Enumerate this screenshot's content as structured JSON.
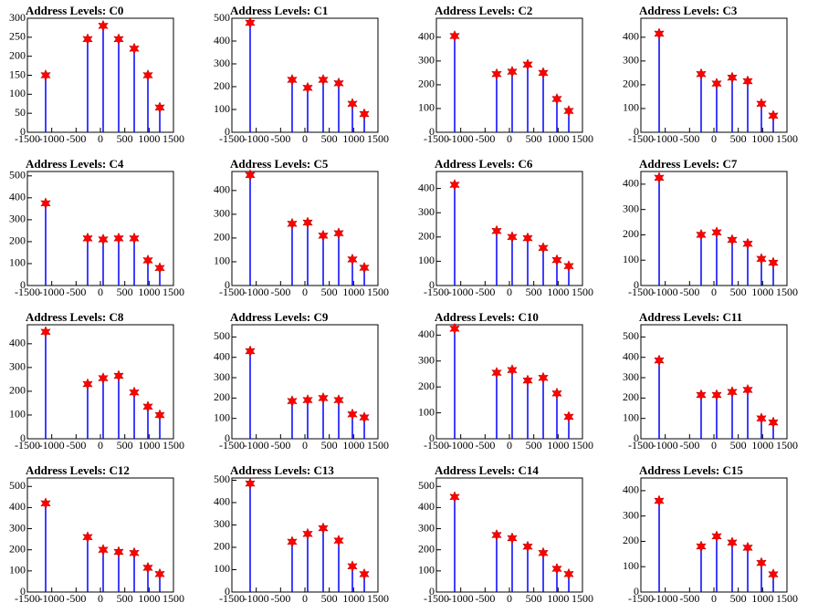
{
  "chart_data": [
    {
      "type": "scatter",
      "title": "Address Levels: C0",
      "x": [
        -1125,
        -263,
        56,
        375,
        694,
        975,
        1219
      ],
      "values": [
        150,
        245,
        280,
        245,
        220,
        150,
        65
      ],
      "ylim": [
        0,
        300
      ],
      "yticks": [
        0,
        50,
        100,
        150,
        200,
        250,
        300
      ],
      "xlim": [
        -1500,
        1500
      ],
      "xticks": [
        -1500,
        -1000,
        -500,
        0,
        500,
        1000,
        1500
      ],
      "color": "#ff0000",
      "line_color": "#0000ff"
    },
    {
      "type": "scatter",
      "title": "Address Levels: C1",
      "x": [
        -1125,
        -263,
        56,
        375,
        694,
        975,
        1219
      ],
      "values": [
        480,
        230,
        195,
        230,
        215,
        125,
        80
      ],
      "ylim": [
        0,
        500
      ],
      "yticks": [
        0,
        100,
        200,
        300,
        400,
        500
      ],
      "xlim": [
        -1500,
        1500
      ],
      "xticks": [
        -1500,
        -1000,
        -500,
        0,
        500,
        1000,
        1500
      ],
      "color": "#ff0000",
      "line_color": "#0000ff"
    },
    {
      "type": "scatter",
      "title": "Address Levels: C2",
      "x": [
        -1125,
        -263,
        56,
        375,
        694,
        975,
        1219
      ],
      "values": [
        405,
        245,
        255,
        285,
        250,
        140,
        90
      ],
      "ylim": [
        0,
        480
      ],
      "yticks": [
        0,
        100,
        200,
        300,
        400
      ],
      "xlim": [
        -1500,
        1500
      ],
      "xticks": [
        -1500,
        -1000,
        -500,
        0,
        500,
        1000,
        1500
      ],
      "color": "#ff0000",
      "line_color": "#0000ff"
    },
    {
      "type": "scatter",
      "title": "Address Levels: C3",
      "x": [
        -1125,
        -263,
        56,
        375,
        694,
        975,
        1219
      ],
      "values": [
        415,
        245,
        205,
        230,
        215,
        120,
        70
      ],
      "ylim": [
        0,
        480
      ],
      "yticks": [
        0,
        100,
        200,
        300,
        400
      ],
      "xlim": [
        -1500,
        1500
      ],
      "xticks": [
        -1500,
        -1000,
        -500,
        0,
        500,
        1000,
        1500
      ],
      "color": "#ff0000",
      "line_color": "#0000ff"
    },
    {
      "type": "scatter",
      "title": "Address Levels: C4",
      "x": [
        -1125,
        -263,
        56,
        375,
        694,
        975,
        1219
      ],
      "values": [
        375,
        215,
        210,
        215,
        215,
        115,
        80
      ],
      "ylim": [
        0,
        520
      ],
      "yticks": [
        0,
        100,
        200,
        300,
        400,
        500
      ],
      "xlim": [
        -1500,
        1500
      ],
      "xticks": [
        -1500,
        -1000,
        -500,
        0,
        500,
        1000,
        1500
      ],
      "color": "#ff0000",
      "line_color": "#0000ff"
    },
    {
      "type": "scatter",
      "title": "Address Levels: C5",
      "x": [
        -1125,
        -263,
        56,
        375,
        694,
        975,
        1219
      ],
      "values": [
        465,
        260,
        265,
        210,
        220,
        110,
        75
      ],
      "ylim": [
        0,
        480
      ],
      "yticks": [
        0,
        100,
        200,
        300,
        400
      ],
      "xlim": [
        -1500,
        1500
      ],
      "xticks": [
        -1500,
        -1000,
        -500,
        0,
        500,
        1000,
        1500
      ],
      "color": "#ff0000",
      "line_color": "#0000ff"
    },
    {
      "type": "scatter",
      "title": "Address Levels: C6",
      "x": [
        -1125,
        -263,
        56,
        375,
        694,
        975,
        1219
      ],
      "values": [
        415,
        225,
        200,
        195,
        155,
        105,
        80
      ],
      "ylim": [
        0,
        470
      ],
      "yticks": [
        0,
        100,
        200,
        300,
        400
      ],
      "xlim": [
        -1500,
        1500
      ],
      "xticks": [
        -1500,
        -1000,
        -500,
        0,
        500,
        1000,
        1500
      ],
      "color": "#ff0000",
      "line_color": "#0000ff"
    },
    {
      "type": "scatter",
      "title": "Address Levels: C7",
      "x": [
        -1125,
        -263,
        56,
        375,
        694,
        975,
        1219
      ],
      "values": [
        425,
        200,
        210,
        180,
        165,
        105,
        90
      ],
      "ylim": [
        0,
        450
      ],
      "yticks": [
        0,
        100,
        200,
        300,
        400
      ],
      "xlim": [
        -1500,
        1500
      ],
      "xticks": [
        -1500,
        -1000,
        -500,
        0,
        500,
        1000,
        1500
      ],
      "color": "#ff0000",
      "line_color": "#0000ff"
    },
    {
      "type": "scatter",
      "title": "Address Levels: C8",
      "x": [
        -1125,
        -263,
        56,
        375,
        694,
        975,
        1219
      ],
      "values": [
        450,
        230,
        255,
        265,
        195,
        135,
        100
      ],
      "ylim": [
        0,
        480
      ],
      "yticks": [
        0,
        100,
        200,
        300,
        400
      ],
      "xlim": [
        -1500,
        1500
      ],
      "xticks": [
        -1500,
        -1000,
        -500,
        0,
        500,
        1000,
        1500
      ],
      "color": "#ff0000",
      "line_color": "#0000ff"
    },
    {
      "type": "scatter",
      "title": "Address Levels: C9",
      "x": [
        -1125,
        -263,
        56,
        375,
        694,
        975,
        1219
      ],
      "values": [
        430,
        185,
        190,
        200,
        190,
        120,
        105
      ],
      "ylim": [
        0,
        560
      ],
      "yticks": [
        0,
        100,
        200,
        300,
        400,
        500
      ],
      "xlim": [
        -1500,
        1500
      ],
      "xticks": [
        -1500,
        -1000,
        -500,
        0,
        500,
        1000,
        1500
      ],
      "color": "#ff0000",
      "line_color": "#0000ff"
    },
    {
      "type": "scatter",
      "title": "Address Levels: C10",
      "x": [
        -1125,
        -263,
        56,
        375,
        694,
        975,
        1219
      ],
      "values": [
        425,
        255,
        265,
        225,
        235,
        175,
        85
      ],
      "ylim": [
        0,
        440
      ],
      "yticks": [
        0,
        100,
        200,
        300,
        400
      ],
      "xlim": [
        -1500,
        1500
      ],
      "xticks": [
        -1500,
        -1000,
        -500,
        0,
        500,
        1000,
        1500
      ],
      "color": "#ff0000",
      "line_color": "#0000ff"
    },
    {
      "type": "scatter",
      "title": "Address Levels: C11",
      "x": [
        -1125,
        -263,
        56,
        375,
        694,
        975,
        1219
      ],
      "values": [
        385,
        215,
        215,
        230,
        240,
        100,
        80
      ],
      "ylim": [
        0,
        560
      ],
      "yticks": [
        0,
        100,
        200,
        300,
        400,
        500
      ],
      "xlim": [
        -1500,
        1500
      ],
      "xticks": [
        -1500,
        -1000,
        -500,
        0,
        500,
        1000,
        1500
      ],
      "color": "#ff0000",
      "line_color": "#0000ff"
    },
    {
      "type": "scatter",
      "title": "Address Levels: C12",
      "x": [
        -1125,
        -263,
        56,
        375,
        694,
        975,
        1219
      ],
      "values": [
        420,
        260,
        200,
        190,
        185,
        115,
        85
      ],
      "ylim": [
        0,
        540
      ],
      "yticks": [
        0,
        100,
        200,
        300,
        400,
        500
      ],
      "xlim": [
        -1500,
        1500
      ],
      "xticks": [
        -1500,
        -1000,
        -500,
        0,
        500,
        1000,
        1500
      ],
      "color": "#ff0000",
      "line_color": "#0000ff"
    },
    {
      "type": "scatter",
      "title": "Address Levels: C13",
      "x": [
        -1125,
        -263,
        56,
        375,
        694,
        975,
        1219
      ],
      "values": [
        485,
        225,
        260,
        285,
        230,
        115,
        80
      ],
      "ylim": [
        0,
        510
      ],
      "yticks": [
        0,
        100,
        200,
        300,
        400,
        500
      ],
      "xlim": [
        -1500,
        1500
      ],
      "xticks": [
        -1500,
        -1000,
        -500,
        0,
        500,
        1000,
        1500
      ],
      "color": "#ff0000",
      "line_color": "#0000ff"
    },
    {
      "type": "scatter",
      "title": "Address Levels: C14",
      "x": [
        -1125,
        -263,
        56,
        375,
        694,
        975,
        1219
      ],
      "values": [
        450,
        270,
        255,
        215,
        185,
        110,
        85
      ],
      "ylim": [
        0,
        540
      ],
      "yticks": [
        0,
        100,
        200,
        300,
        400,
        500
      ],
      "xlim": [
        -1500,
        1500
      ],
      "xticks": [
        -1500,
        -1000,
        -500,
        0,
        500,
        1000,
        1500
      ],
      "color": "#ff0000",
      "line_color": "#0000ff"
    },
    {
      "type": "scatter",
      "title": "Address Levels: C15",
      "x": [
        -1125,
        -263,
        56,
        375,
        694,
        975,
        1219
      ],
      "values": [
        360,
        180,
        220,
        195,
        175,
        115,
        70
      ],
      "ylim": [
        0,
        450
      ],
      "yticks": [
        0,
        100,
        200,
        300,
        400
      ],
      "xlim": [
        -1500,
        1500
      ],
      "xticks": [
        -1500,
        -1000,
        -500,
        0,
        500,
        1000,
        1500
      ],
      "color": "#ff0000",
      "line_color": "#0000ff"
    }
  ]
}
